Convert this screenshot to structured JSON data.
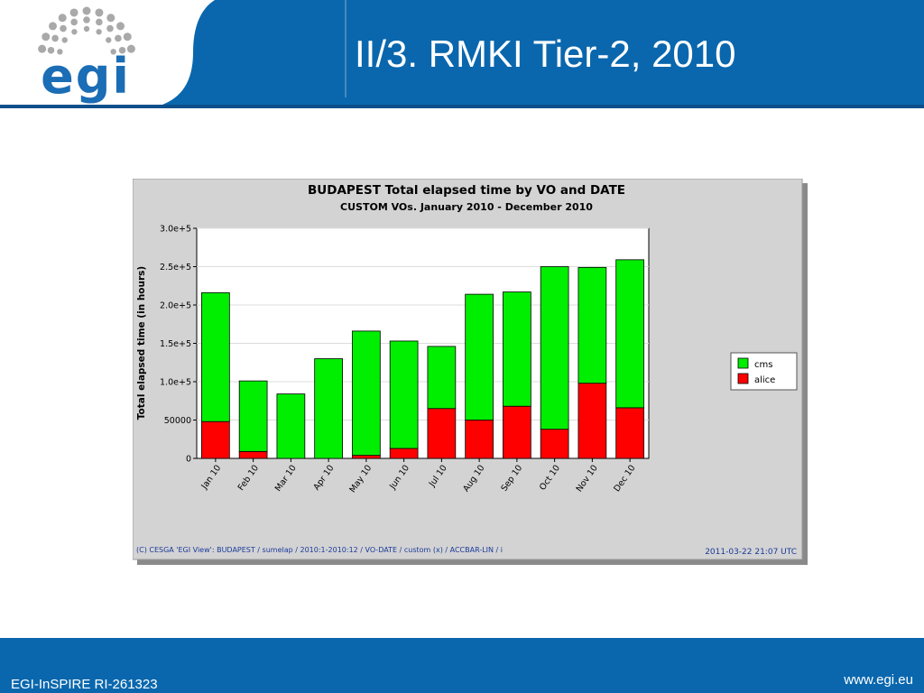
{
  "slide": {
    "title": "II/3. RMKI Tier-2, 2010",
    "footer_left": "EGI-InSPIRE RI-261323",
    "footer_right": "www.egi.eu",
    "logo_text": "egi"
  },
  "colors": {
    "header_bg": "#0a67ad",
    "cms": "#00ee00",
    "alice": "#ff0000",
    "chart_bg": "#d3d3d3"
  },
  "chart_data": {
    "type": "bar",
    "stacked": true,
    "title": "BUDAPEST  Total elapsed time by VO and DATE",
    "subtitle": "CUSTOM VOs. January 2010 - December 2010",
    "xlabel": "",
    "ylabel": "Total elapsed time (in hours)",
    "ylim": [
      0,
      300000
    ],
    "yticks": [
      0,
      50000,
      100000,
      150000,
      200000,
      250000,
      300000
    ],
    "ytick_labels": [
      "0",
      "50000",
      "1.0e+5",
      "1.5e+5",
      "2.0e+5",
      "2.5e+5",
      "3.0e+5"
    ],
    "grid": true,
    "legend_position": "right",
    "categories": [
      "Jan 10",
      "Feb 10",
      "Mar 10",
      "Apr 10",
      "May 10",
      "Jun 10",
      "Jul 10",
      "Aug 10",
      "Sep 10",
      "Oct 10",
      "Nov 10",
      "Dec 10"
    ],
    "series": [
      {
        "name": "alice",
        "color": "#ff0000",
        "values": [
          48000,
          9000,
          0,
          0,
          4000,
          13000,
          65000,
          50000,
          68000,
          38000,
          98000,
          66000
        ]
      },
      {
        "name": "cms",
        "color": "#00ee00",
        "values": [
          168000,
          92000,
          84000,
          130000,
          162000,
          140000,
          81000,
          164000,
          149000,
          212000,
          151000,
          193000
        ]
      }
    ],
    "legend_order": [
      "cms",
      "alice"
    ],
    "footer_note": "(C) CESGA 'EGI View': BUDAPEST / sumelap / 2010:1-2010:12 / VO-DATE / custom (x) / ACCBAR-LIN / i",
    "timestamp": "2011-03-22 21:07 UTC"
  }
}
